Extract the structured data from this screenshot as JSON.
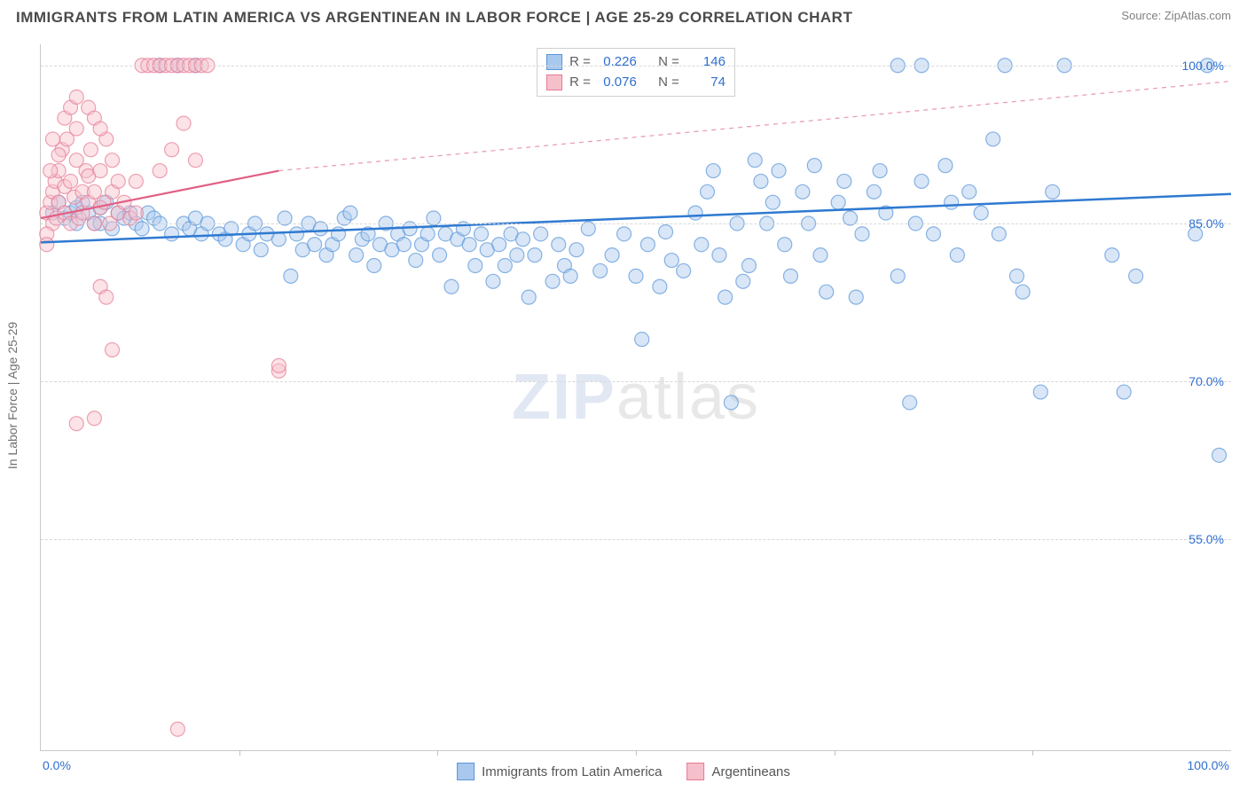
{
  "title": "IMMIGRANTS FROM LATIN AMERICA VS ARGENTINEAN IN LABOR FORCE | AGE 25-29 CORRELATION CHART",
  "source_label": "Source:",
  "source_name": "ZipAtlas.com",
  "watermark_bold": "ZIP",
  "watermark_light": "atlas",
  "ylabel": "In Labor Force | Age 25-29",
  "chart": {
    "type": "scatter",
    "background_color": "#ffffff",
    "grid_color": "#d8d8d8",
    "axis_color": "#c8c8c8",
    "tick_label_color": "#2f6fd0",
    "tick_fontsize": 14,
    "xlim": [
      0,
      100
    ],
    "ylim": [
      35,
      102
    ],
    "x_ticks": [
      0,
      100
    ],
    "x_tick_labels": [
      "0.0%",
      "100.0%"
    ],
    "x_minor_ticks": [
      16.67,
      33.33,
      50,
      66.67,
      83.33
    ],
    "y_ticks": [
      55,
      70,
      85,
      100
    ],
    "y_tick_labels": [
      "55.0%",
      "70.0%",
      "85.0%",
      "100.0%"
    ],
    "marker_radius": 8,
    "marker_opacity": 0.45,
    "marker_stroke_width": 1.2,
    "series": [
      {
        "name": "Immigrants from Latin America",
        "fill_color": "#a9c8ee",
        "stroke_color": "#5a95d9",
        "R": "0.226",
        "N": "146",
        "trend": {
          "x1": 0,
          "y1": 83.2,
          "x2": 100,
          "y2": 87.8,
          "color": "#2f7ad1",
          "width": 2.5,
          "dash": "none"
        },
        "points": [
          [
            1,
            86
          ],
          [
            1.5,
            87
          ],
          [
            2,
            85.5
          ],
          [
            2.5,
            86
          ],
          [
            3,
            86.5
          ],
          [
            3,
            85
          ],
          [
            3.5,
            87
          ],
          [
            4,
            86
          ],
          [
            4.5,
            85
          ],
          [
            5,
            86.5
          ],
          [
            5,
            85
          ],
          [
            5.5,
            87
          ],
          [
            6,
            84.5
          ],
          [
            6.5,
            86
          ],
          [
            7,
            85.5
          ],
          [
            7.5,
            86
          ],
          [
            8,
            85
          ],
          [
            8.5,
            84.5
          ],
          [
            9,
            86
          ],
          [
            9.5,
            85.5
          ],
          [
            10,
            85
          ],
          [
            10,
            100
          ],
          [
            11,
            84
          ],
          [
            11.5,
            100
          ],
          [
            12,
            85
          ],
          [
            12.5,
            84.5
          ],
          [
            13,
            85.5
          ],
          [
            13,
            100
          ],
          [
            13.5,
            84
          ],
          [
            14,
            85
          ],
          [
            15,
            84
          ],
          [
            15.5,
            83.5
          ],
          [
            16,
            84.5
          ],
          [
            17,
            83
          ],
          [
            17.5,
            84
          ],
          [
            18,
            85
          ],
          [
            18.5,
            82.5
          ],
          [
            19,
            84
          ],
          [
            20,
            83.5
          ],
          [
            20.5,
            85.5
          ],
          [
            21,
            80
          ],
          [
            21.5,
            84
          ],
          [
            22,
            82.5
          ],
          [
            22.5,
            85
          ],
          [
            23,
            83
          ],
          [
            23.5,
            84.5
          ],
          [
            24,
            82
          ],
          [
            24.5,
            83
          ],
          [
            25,
            84
          ],
          [
            25.5,
            85.5
          ],
          [
            26,
            86
          ],
          [
            26.5,
            82
          ],
          [
            27,
            83.5
          ],
          [
            27.5,
            84
          ],
          [
            28,
            81
          ],
          [
            28.5,
            83
          ],
          [
            29,
            85
          ],
          [
            29.5,
            82.5
          ],
          [
            30,
            84
          ],
          [
            30.5,
            83
          ],
          [
            31,
            84.5
          ],
          [
            31.5,
            81.5
          ],
          [
            32,
            83
          ],
          [
            32.5,
            84
          ],
          [
            33,
            85.5
          ],
          [
            33.5,
            82
          ],
          [
            34,
            84
          ],
          [
            34.5,
            79
          ],
          [
            35,
            83.5
          ],
          [
            35.5,
            84.5
          ],
          [
            36,
            83
          ],
          [
            36.5,
            81
          ],
          [
            37,
            84
          ],
          [
            37.5,
            82.5
          ],
          [
            38,
            79.5
          ],
          [
            38.5,
            83
          ],
          [
            39,
            81
          ],
          [
            39.5,
            84
          ],
          [
            40,
            82
          ],
          [
            40.5,
            83.5
          ],
          [
            41,
            78
          ],
          [
            41.5,
            82
          ],
          [
            42,
            84
          ],
          [
            43,
            79.5
          ],
          [
            43.5,
            83
          ],
          [
            44,
            81
          ],
          [
            44.5,
            80
          ],
          [
            45,
            82.5
          ],
          [
            46,
            84.5
          ],
          [
            47,
            80.5
          ],
          [
            48,
            82
          ],
          [
            49,
            84
          ],
          [
            50,
            80
          ],
          [
            50.5,
            74
          ],
          [
            51,
            83
          ],
          [
            52,
            79
          ],
          [
            52.5,
            84.2
          ],
          [
            53,
            81.5
          ],
          [
            54,
            80.5
          ],
          [
            55,
            86
          ],
          [
            55.5,
            83
          ],
          [
            56,
            88
          ],
          [
            56.5,
            90
          ],
          [
            57,
            82
          ],
          [
            57.5,
            78
          ],
          [
            58,
            68
          ],
          [
            58.5,
            85
          ],
          [
            59,
            79.5
          ],
          [
            59.5,
            81
          ],
          [
            60,
            91
          ],
          [
            60.5,
            89
          ],
          [
            61,
            85
          ],
          [
            61.5,
            87
          ],
          [
            62,
            90
          ],
          [
            62.5,
            83
          ],
          [
            63,
            80
          ],
          [
            64,
            88
          ],
          [
            64.5,
            85
          ],
          [
            65,
            90.5
          ],
          [
            65.5,
            82
          ],
          [
            66,
            78.5
          ],
          [
            67,
            87
          ],
          [
            67.5,
            89
          ],
          [
            68,
            85.5
          ],
          [
            68.5,
            78
          ],
          [
            69,
            84
          ],
          [
            70,
            88
          ],
          [
            70.5,
            90
          ],
          [
            71,
            86
          ],
          [
            72,
            80
          ],
          [
            72,
            100
          ],
          [
            73,
            68
          ],
          [
            73.5,
            85
          ],
          [
            74,
            89
          ],
          [
            74,
            100
          ],
          [
            75,
            84
          ],
          [
            76,
            90.5
          ],
          [
            76.5,
            87
          ],
          [
            77,
            82
          ],
          [
            78,
            88
          ],
          [
            79,
            86
          ],
          [
            80,
            93
          ],
          [
            80.5,
            84
          ],
          [
            81,
            100
          ],
          [
            82,
            80
          ],
          [
            82.5,
            78.5
          ],
          [
            84,
            69
          ],
          [
            85,
            88
          ],
          [
            86,
            100
          ],
          [
            90,
            82
          ],
          [
            91,
            69
          ],
          [
            92,
            80
          ],
          [
            97,
            84
          ],
          [
            98,
            100
          ],
          [
            99,
            63
          ]
        ]
      },
      {
        "name": "Argentineans",
        "fill_color": "#f6c0cb",
        "stroke_color": "#e77a94",
        "R": "0.076",
        "N": "74",
        "trend_solid": {
          "x1": 0,
          "y1": 85.5,
          "x2": 20,
          "y2": 90,
          "color": "#e15f85",
          "width": 2.2
        },
        "trend_dash": {
          "x1": 20,
          "y1": 90,
          "x2": 100,
          "y2": 98.5,
          "color": "#e9a0b3",
          "width": 1.3
        },
        "points": [
          [
            0.5,
            86
          ],
          [
            0.8,
            87
          ],
          [
            1,
            85
          ],
          [
            1,
            88
          ],
          [
            1.2,
            89
          ],
          [
            1.3,
            85.5
          ],
          [
            1.5,
            87
          ],
          [
            1.5,
            90
          ],
          [
            1.8,
            92
          ],
          [
            2,
            86
          ],
          [
            2,
            88.5
          ],
          [
            2.2,
            93
          ],
          [
            2.5,
            85
          ],
          [
            2.5,
            89
          ],
          [
            2.8,
            87.5
          ],
          [
            3,
            91
          ],
          [
            3,
            94
          ],
          [
            3.2,
            85.5
          ],
          [
            3.5,
            88
          ],
          [
            3.5,
            86
          ],
          [
            3.8,
            90
          ],
          [
            4,
            87
          ],
          [
            4,
            89.5
          ],
          [
            4.2,
            92
          ],
          [
            4.5,
            85
          ],
          [
            4.5,
            88
          ],
          [
            5,
            86.5
          ],
          [
            5,
            90
          ],
          [
            5.3,
            87
          ],
          [
            5.5,
            93
          ],
          [
            5.8,
            85
          ],
          [
            6,
            88
          ],
          [
            6,
            91
          ],
          [
            6.5,
            86
          ],
          [
            6.5,
            89
          ],
          [
            7,
            87
          ],
          [
            7.5,
            85.5
          ],
          [
            8,
            89
          ],
          [
            8,
            86
          ],
          [
            8.5,
            100
          ],
          [
            9,
            100
          ],
          [
            9.5,
            100
          ],
          [
            10,
            100
          ],
          [
            10,
            90
          ],
          [
            10.5,
            100
          ],
          [
            11,
            100
          ],
          [
            11,
            92
          ],
          [
            11.5,
            100
          ],
          [
            12,
            100
          ],
          [
            12,
            94.5
          ],
          [
            12.5,
            100
          ],
          [
            13,
            100
          ],
          [
            13.5,
            100
          ],
          [
            14,
            100
          ],
          [
            5,
            79
          ],
          [
            5.5,
            78
          ],
          [
            6,
            73
          ],
          [
            3,
            66
          ],
          [
            4.5,
            66.5
          ],
          [
            11.5,
            37
          ],
          [
            2,
            95
          ],
          [
            2.5,
            96
          ],
          [
            3,
            97
          ],
          [
            1,
            93
          ],
          [
            1.5,
            91.5
          ],
          [
            0.8,
            90
          ],
          [
            0.5,
            84
          ],
          [
            0.5,
            83
          ],
          [
            4,
            96
          ],
          [
            4.5,
            95
          ],
          [
            5,
            94
          ],
          [
            20,
            71
          ],
          [
            20,
            71.5
          ],
          [
            13,
            91
          ]
        ]
      }
    ]
  },
  "stats_labels": {
    "R": "R =",
    "N": "N ="
  },
  "legend_bottom": [
    {
      "label": "Immigrants from Latin America",
      "fill": "#a9c8ee",
      "stroke": "#5a95d9"
    },
    {
      "label": "Argentineans",
      "fill": "#f6c0cb",
      "stroke": "#e77a94"
    }
  ]
}
